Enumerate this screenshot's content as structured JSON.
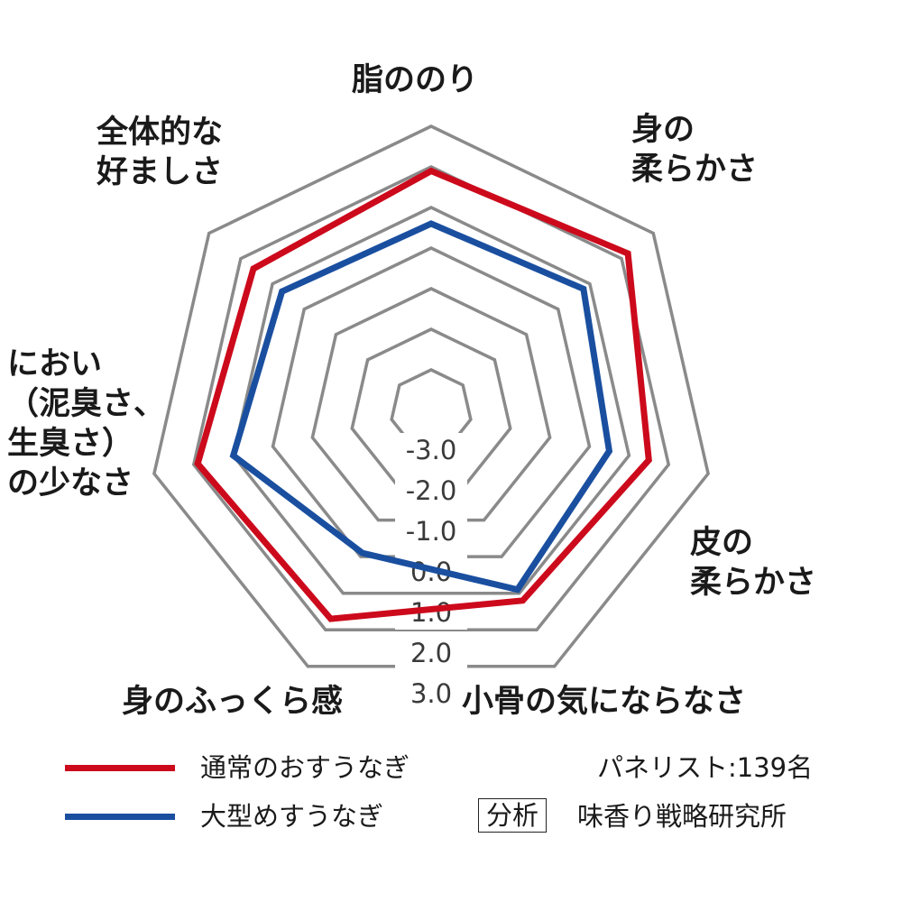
{
  "chart_data": {
    "type": "radar",
    "axes": [
      "脂ののり",
      "身の\n柔らかさ",
      "皮の\n柔らかさ",
      "小骨の気にならなさ",
      "身のふっくら感",
      "におい\n（泥臭さ、\n生臭さ）\nの少なさ",
      "全体的な\n好ましさ"
    ],
    "scale_labels": [
      "-3.0",
      "-2.0",
      "-1.0",
      "0.0",
      "1.0",
      "2.0",
      "3.0"
    ],
    "rlim": [
      -4,
      3
    ],
    "series": [
      {
        "name": "通常のおすうなぎ",
        "color": "#cc0a1c",
        "values": [
          1.9,
          2.2,
          1.5,
          1.2,
          1.7,
          1.9,
          1.6
        ]
      },
      {
        "name": "大型めすうなぎ",
        "color": "#1a4fa0",
        "values": [
          0.6,
          0.8,
          0.5,
          0.9,
          -0.1,
          1.0,
          0.7
        ]
      }
    ]
  },
  "legend_note": {
    "panelists": "パネリスト:139名",
    "analysis_badge": "分析",
    "analysis_org": "味香り戦略研究所"
  },
  "colors": {
    "grid": "#8a8a8a",
    "text": "#1a1a1a"
  }
}
